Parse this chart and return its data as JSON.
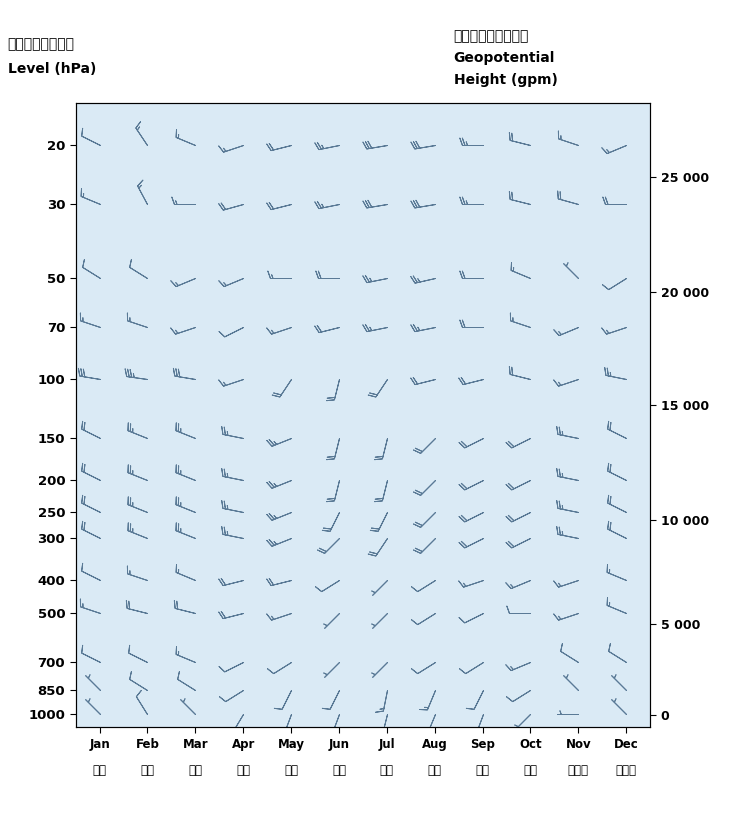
{
  "title_left_line1": "高度（百帕斯卡）",
  "title_left_line2": "Level (hPa)",
  "title_right_line1": "位勢高度（位勢米）",
  "title_right_line2": "Geopotential",
  "title_right_line3": "Height (gpm)",
  "pressure_levels": [
    20,
    30,
    50,
    70,
    100,
    150,
    200,
    250,
    300,
    400,
    500,
    700,
    850,
    1000
  ],
  "right_ytick_pressures": [
    1013,
    540,
    265,
    120,
    55,
    25
  ],
  "right_ytick_labels": [
    "0",
    "5 000",
    "10 000",
    "15 000",
    "20 000",
    "25 000"
  ],
  "months_chinese": [
    "一月",
    "二月",
    "三月",
    "四月",
    "五月",
    "六月",
    "七月",
    "八月",
    "九月",
    "十月",
    "十一月",
    "十二月"
  ],
  "months_english": [
    "Jan",
    "Feb",
    "Mar",
    "Apr",
    "May",
    "Jun",
    "Jul",
    "Aug",
    "Sep",
    "Oct",
    "Nov",
    "Dec"
  ],
  "background_color": "#daeaf5",
  "barb_color": "#5a7a96",
  "wind_data": [
    [
      1,
      20,
      10,
      -5
    ],
    [
      2,
      20,
      8,
      -12
    ],
    [
      3,
      20,
      12,
      -5
    ],
    [
      4,
      20,
      15,
      5
    ],
    [
      5,
      20,
      20,
      5
    ],
    [
      6,
      20,
      25,
      5
    ],
    [
      7,
      20,
      30,
      5
    ],
    [
      8,
      20,
      30,
      5
    ],
    [
      9,
      20,
      25,
      0
    ],
    [
      10,
      20,
      20,
      -5
    ],
    [
      11,
      20,
      15,
      -5
    ],
    [
      12,
      20,
      12,
      5
    ],
    [
      1,
      30,
      12,
      -5
    ],
    [
      2,
      30,
      8,
      -15
    ],
    [
      3,
      30,
      15,
      0
    ],
    [
      4,
      30,
      18,
      5
    ],
    [
      5,
      30,
      20,
      5
    ],
    [
      6,
      30,
      25,
      5
    ],
    [
      7,
      30,
      30,
      5
    ],
    [
      8,
      30,
      30,
      5
    ],
    [
      9,
      30,
      25,
      0
    ],
    [
      10,
      30,
      20,
      -5
    ],
    [
      11,
      30,
      18,
      -5
    ],
    [
      12,
      30,
      22,
      0
    ],
    [
      1,
      50,
      8,
      -5
    ],
    [
      2,
      50,
      8,
      -5
    ],
    [
      3,
      50,
      12,
      5
    ],
    [
      4,
      50,
      12,
      5
    ],
    [
      5,
      50,
      15,
      0
    ],
    [
      6,
      50,
      20,
      0
    ],
    [
      7,
      50,
      25,
      5
    ],
    [
      8,
      50,
      22,
      5
    ],
    [
      9,
      50,
      18,
      0
    ],
    [
      10,
      50,
      12,
      -5
    ],
    [
      11,
      50,
      5,
      -5
    ],
    [
      12,
      50,
      8,
      5
    ],
    [
      1,
      70,
      15,
      -5
    ],
    [
      2,
      70,
      15,
      -5
    ],
    [
      3,
      70,
      15,
      5
    ],
    [
      4,
      70,
      10,
      5
    ],
    [
      5,
      70,
      15,
      5
    ],
    [
      6,
      70,
      20,
      5
    ],
    [
      7,
      70,
      25,
      5
    ],
    [
      8,
      70,
      25,
      5
    ],
    [
      9,
      70,
      20,
      0
    ],
    [
      10,
      70,
      15,
      -5
    ],
    [
      11,
      70,
      12,
      5
    ],
    [
      12,
      70,
      15,
      5
    ],
    [
      1,
      100,
      30,
      -5
    ],
    [
      2,
      100,
      35,
      -5
    ],
    [
      3,
      100,
      30,
      -5
    ],
    [
      4,
      100,
      15,
      5
    ],
    [
      5,
      100,
      10,
      15
    ],
    [
      6,
      100,
      5,
      20
    ],
    [
      7,
      100,
      10,
      15
    ],
    [
      8,
      100,
      20,
      5
    ],
    [
      9,
      100,
      20,
      5
    ],
    [
      10,
      100,
      20,
      -5
    ],
    [
      11,
      100,
      15,
      5
    ],
    [
      12,
      100,
      25,
      -5
    ],
    [
      1,
      150,
      20,
      -10
    ],
    [
      2,
      150,
      25,
      -10
    ],
    [
      3,
      150,
      25,
      -10
    ],
    [
      4,
      150,
      25,
      -5
    ],
    [
      5,
      150,
      25,
      10
    ],
    [
      6,
      150,
      5,
      20
    ],
    [
      7,
      150,
      5,
      20
    ],
    [
      8,
      150,
      15,
      15
    ],
    [
      9,
      150,
      20,
      10
    ],
    [
      10,
      150,
      20,
      10
    ],
    [
      11,
      150,
      25,
      -5
    ],
    [
      12,
      150,
      20,
      -10
    ],
    [
      1,
      200,
      20,
      -10
    ],
    [
      2,
      200,
      25,
      -10
    ],
    [
      3,
      200,
      25,
      -10
    ],
    [
      4,
      200,
      25,
      -5
    ],
    [
      5,
      200,
      25,
      10
    ],
    [
      6,
      200,
      5,
      20
    ],
    [
      7,
      200,
      5,
      20
    ],
    [
      8,
      200,
      15,
      15
    ],
    [
      9,
      200,
      20,
      10
    ],
    [
      10,
      200,
      20,
      10
    ],
    [
      11,
      200,
      25,
      -5
    ],
    [
      12,
      200,
      20,
      -10
    ],
    [
      1,
      250,
      20,
      -10
    ],
    [
      2,
      250,
      25,
      -10
    ],
    [
      3,
      250,
      25,
      -10
    ],
    [
      4,
      250,
      25,
      -5
    ],
    [
      5,
      250,
      25,
      10
    ],
    [
      6,
      250,
      10,
      20
    ],
    [
      7,
      250,
      10,
      20
    ],
    [
      8,
      250,
      15,
      15
    ],
    [
      9,
      250,
      20,
      10
    ],
    [
      10,
      250,
      20,
      10
    ],
    [
      11,
      250,
      25,
      -5
    ],
    [
      12,
      250,
      20,
      -10
    ],
    [
      1,
      300,
      20,
      -10
    ],
    [
      2,
      300,
      25,
      -10
    ],
    [
      3,
      300,
      25,
      -10
    ],
    [
      4,
      300,
      25,
      -5
    ],
    [
      5,
      300,
      25,
      10
    ],
    [
      6,
      300,
      15,
      15
    ],
    [
      7,
      300,
      10,
      15
    ],
    [
      8,
      300,
      15,
      15
    ],
    [
      9,
      300,
      20,
      10
    ],
    [
      10,
      300,
      20,
      10
    ],
    [
      11,
      300,
      25,
      -5
    ],
    [
      12,
      300,
      20,
      -10
    ],
    [
      1,
      400,
      10,
      -5
    ],
    [
      2,
      400,
      15,
      -5
    ],
    [
      3,
      400,
      12,
      -5
    ],
    [
      4,
      400,
      20,
      5
    ],
    [
      5,
      400,
      20,
      5
    ],
    [
      6,
      400,
      8,
      5
    ],
    [
      7,
      400,
      5,
      5
    ],
    [
      8,
      400,
      8,
      5
    ],
    [
      9,
      400,
      15,
      5
    ],
    [
      10,
      400,
      12,
      5
    ],
    [
      11,
      400,
      15,
      5
    ],
    [
      12,
      400,
      12,
      -5
    ],
    [
      1,
      500,
      15,
      -5
    ],
    [
      2,
      500,
      20,
      -5
    ],
    [
      3,
      500,
      20,
      -5
    ],
    [
      4,
      500,
      20,
      5
    ],
    [
      5,
      500,
      15,
      5
    ],
    [
      6,
      500,
      5,
      5
    ],
    [
      7,
      500,
      5,
      5
    ],
    [
      8,
      500,
      8,
      5
    ],
    [
      9,
      500,
      10,
      5
    ],
    [
      10,
      500,
      8,
      0
    ],
    [
      11,
      500,
      15,
      5
    ],
    [
      12,
      500,
      12,
      -5
    ],
    [
      1,
      700,
      10,
      -5
    ],
    [
      2,
      700,
      10,
      -5
    ],
    [
      3,
      700,
      12,
      -5
    ],
    [
      4,
      700,
      10,
      5
    ],
    [
      5,
      700,
      8,
      5
    ],
    [
      6,
      700,
      5,
      5
    ],
    [
      7,
      700,
      5,
      5
    ],
    [
      8,
      700,
      8,
      5
    ],
    [
      9,
      700,
      8,
      5
    ],
    [
      10,
      700,
      12,
      5
    ],
    [
      11,
      700,
      8,
      -5
    ],
    [
      12,
      700,
      8,
      -5
    ],
    [
      1,
      850,
      5,
      -5
    ],
    [
      2,
      850,
      8,
      -5
    ],
    [
      3,
      850,
      8,
      -5
    ],
    [
      4,
      850,
      8,
      5
    ],
    [
      5,
      850,
      5,
      10
    ],
    [
      6,
      850,
      5,
      10
    ],
    [
      7,
      850,
      3,
      15
    ],
    [
      8,
      850,
      5,
      12
    ],
    [
      9,
      850,
      5,
      10
    ],
    [
      10,
      850,
      8,
      5
    ],
    [
      11,
      850,
      5,
      -5
    ],
    [
      12,
      850,
      5,
      -5
    ],
    [
      1,
      1000,
      5,
      -5
    ],
    [
      2,
      1000,
      5,
      -8
    ],
    [
      3,
      1000,
      5,
      -5
    ],
    [
      4,
      1000,
      3,
      5
    ],
    [
      5,
      1000,
      3,
      8
    ],
    [
      6,
      1000,
      3,
      8
    ],
    [
      7,
      1000,
      3,
      12
    ],
    [
      8,
      1000,
      5,
      12
    ],
    [
      9,
      1000,
      3,
      8
    ],
    [
      10,
      1000,
      5,
      5
    ],
    [
      11,
      1000,
      3,
      0
    ],
    [
      12,
      1000,
      5,
      -5
    ]
  ]
}
